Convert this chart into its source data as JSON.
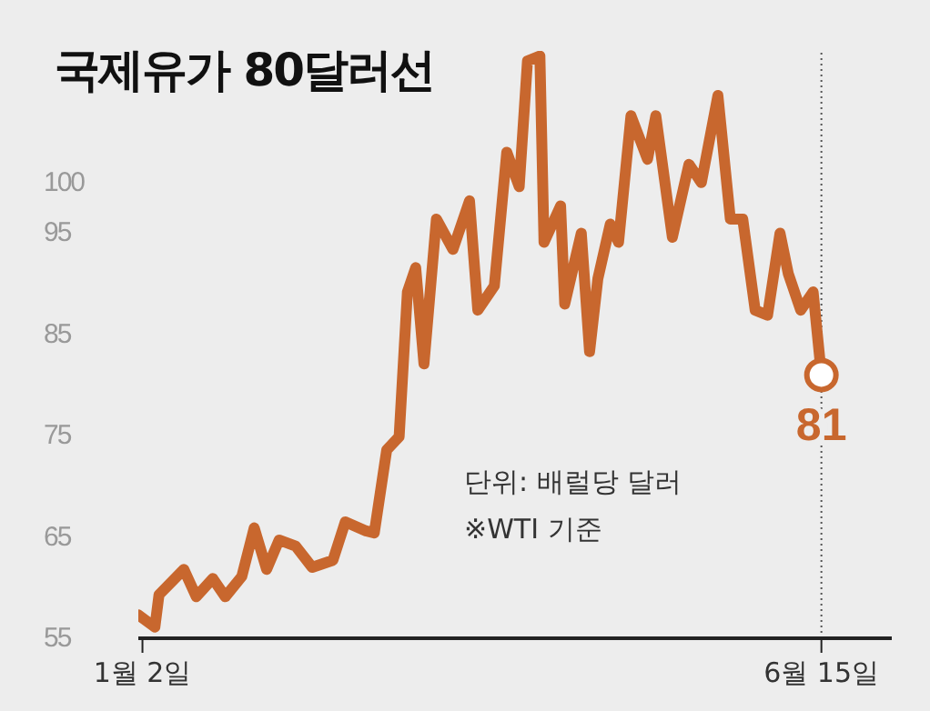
{
  "chart_data": {
    "type": "line",
    "title": "국제유가 80달러선",
    "x": [
      "--01-01",
      "--01-05",
      "--01-06",
      "--01-12",
      "--01-15",
      "--01-19",
      "--01-22",
      "--01-26",
      "--01-29",
      "--02-01",
      "--02-04",
      "--02-08",
      "--02-12",
      "--02-17",
      "--02-20",
      "--02-25",
      "--02-27",
      "--03-02",
      "--03-05",
      "--03-07",
      "--03-09",
      "--03-11",
      "--03-14",
      "--03-18",
      "--03-22",
      "--03-24",
      "--03-28",
      "--03-31",
      "--04-03",
      "--04-05",
      "--04-08",
      "--04-09",
      "--04-13",
      "--04-14",
      "--04-18",
      "--04-20",
      "--04-22",
      "--04-25",
      "--04-27",
      "--04-30",
      "--05-04",
      "--05-06",
      "--05-10",
      "--05-14",
      "--05-17",
      "--05-21",
      "--05-24",
      "--05-27",
      "--05-30",
      "--06-02",
      "--06-05",
      "--06-07",
      "--06-10",
      "--06-13",
      "--06-15"
    ],
    "series": [
      {
        "color": "#c8672e",
        "values": [
          57.3,
          56.1,
          59.3,
          61.8,
          59.1,
          60.9,
          59.1,
          61.1,
          65.9,
          61.8,
          64.7,
          64.1,
          62.0,
          62.7,
          66.5,
          65.6,
          65.4,
          73.6,
          74.9,
          89.2,
          91.6,
          82.1,
          96.4,
          93.4,
          98.2,
          87.4,
          89.8,
          103.0,
          99.6,
          112.0,
          112.5,
          94.1,
          97.7,
          88.0,
          95.0,
          83.3,
          90.5,
          95.9,
          94.1,
          106.6,
          102.3,
          106.6,
          94.6,
          101.8,
          100.0,
          108.6,
          96.4,
          96.4,
          87.4,
          86.9,
          95.0,
          91.0,
          87.4,
          89.2,
          81
        ]
      },
      {
        "type": "scatter",
        "x": [
          "--06-15"
        ],
        "color": "#c8672e",
        "marker": "circle",
        "values": [
          81
        ],
        "value_labels": [
          "81"
        ]
      }
    ],
    "xlim": [
      "--01-01",
      "--07-02"
    ],
    "xticks": [
      {
        "value": "--01-02",
        "label": "1월 2일"
      },
      {
        "value": "--06-15",
        "label": "6월 15일"
      }
    ],
    "ylim": [
      55,
      113
    ],
    "yticks": [
      55,
      65,
      75,
      85,
      95,
      100
    ],
    "ref_lines": [
      {
        "axis": "x",
        "value": "--06-15",
        "line_style": "dotted",
        "color": "#555555"
      }
    ],
    "annotations": [
      "단위: 배럴당 달러",
      "※WTI 기준"
    ],
    "grid": false,
    "legend": false
  }
}
